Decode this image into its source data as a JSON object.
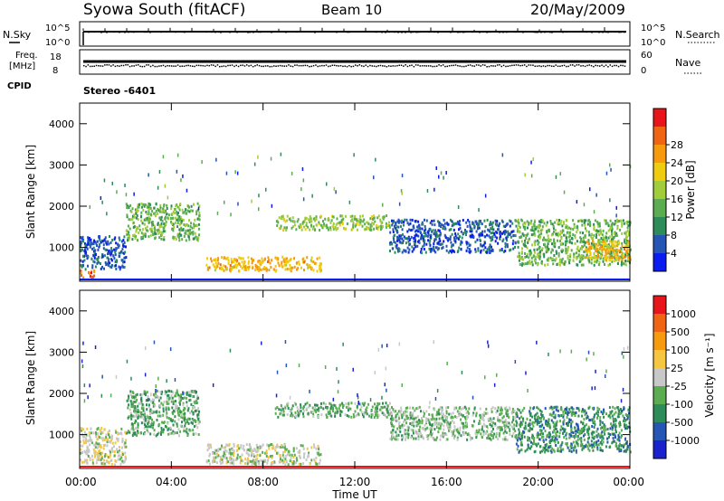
{
  "header": {
    "station": "Syowa South (fitACF)",
    "beam": "Beam 10",
    "date": "20/May/2009"
  },
  "top_panels": {
    "nsky_label": "N.Sky",
    "nsky_top": "10^5",
    "nsky_bottom": "10^0",
    "nsearch_label": "N.Search",
    "nsearch_top": "10^5",
    "nsearch_bottom": "10^0",
    "freq_label_1": "Freq.",
    "freq_label_2": "[MHz]",
    "freq_top": "18",
    "freq_bottom": "8",
    "nave_label": "Nave",
    "nave_top": "60",
    "nave_bottom": "0",
    "cpid_label": "CPID",
    "cpid_value": "Stereo -6401"
  },
  "colors": {
    "power": [
      "#0a1cf0",
      "#2555b5",
      "#2e8c59",
      "#5cad52",
      "#a2cd3a",
      "#efcc10",
      "#f79a0e",
      "#f06513",
      "#e8161a"
    ],
    "velocity": [
      "#e8161a",
      "#f06513",
      "#f79a0e",
      "#f7c640",
      "#c8c8c8",
      "#5cad52",
      "#2e8c59",
      "#2555b5",
      "#1a22ce"
    ]
  },
  "chart_data": [
    {
      "type": "heatmap",
      "name": "Power",
      "ylabel": "Slant Range [km]",
      "yticks": [
        "1000",
        "2000",
        "3000",
        "4000"
      ],
      "ylim": [
        180,
        4500
      ],
      "colorbar_label": "Power [dB]",
      "colorbar_ticks": [
        "4",
        "8",
        "12",
        "16",
        "20",
        "24",
        "28"
      ],
      "colorbar_range": [
        0,
        30
      ],
      "scatter_regions": [
        {
          "hours": [
            0.0,
            0.6
          ],
          "range_km": [
            280,
            480
          ],
          "value": 24
        },
        {
          "hours": [
            0.0,
            2.0
          ],
          "range_km": [
            500,
            1300
          ],
          "value": 5
        },
        {
          "hours": [
            2.0,
            5.2
          ],
          "range_km": [
            1200,
            2100
          ],
          "value": 12
        },
        {
          "hours": [
            5.5,
            10.5
          ],
          "range_km": [
            450,
            800
          ],
          "value": 20
        },
        {
          "hours": [
            8.5,
            13.5
          ],
          "range_km": [
            1450,
            1800
          ],
          "value": 14
        },
        {
          "hours": [
            13.5,
            19.0
          ],
          "range_km": [
            900,
            1700
          ],
          "value": 5
        },
        {
          "hours": [
            19.0,
            24.0
          ],
          "range_km": [
            600,
            1700
          ],
          "value": 12
        },
        {
          "hours": [
            22.0,
            24.0
          ],
          "range_km": [
            700,
            1200
          ],
          "value": 20
        }
      ]
    },
    {
      "type": "heatmap",
      "name": "Velocity",
      "ylabel": "Slant Range [km]",
      "yticks": [
        "1000",
        "2000",
        "3000",
        "4000"
      ],
      "ylim": [
        180,
        4500
      ],
      "colorbar_label": "Velocity [m s⁻¹]",
      "colorbar_ticks": [
        "1000",
        "500",
        "100",
        "25",
        "-25",
        "-100",
        "-500",
        "-1000"
      ],
      "colorbar_range": [
        -1200,
        1200
      ],
      "scatter_regions": [
        {
          "hours": [
            0.0,
            2.0
          ],
          "range_km": [
            300,
            1200
          ],
          "value": 50
        },
        {
          "hours": [
            2.0,
            5.2
          ],
          "range_km": [
            1000,
            2100
          ],
          "value": -300
        },
        {
          "hours": [
            5.5,
            10.5
          ],
          "range_km": [
            300,
            800
          ],
          "value": -60
        },
        {
          "hours": [
            8.5,
            13.5
          ],
          "range_km": [
            1450,
            1800
          ],
          "value": -300
        },
        {
          "hours": [
            13.5,
            19.0
          ],
          "range_km": [
            900,
            1700
          ],
          "value": -200
        },
        {
          "hours": [
            19.0,
            24.0
          ],
          "range_km": [
            600,
            1700
          ],
          "value": -500
        }
      ]
    }
  ],
  "xaxis": {
    "label": "Time UT",
    "ticks": [
      "00:00",
      "04:00",
      "08:00",
      "12:00",
      "16:00",
      "20:00",
      "00:00"
    ]
  }
}
